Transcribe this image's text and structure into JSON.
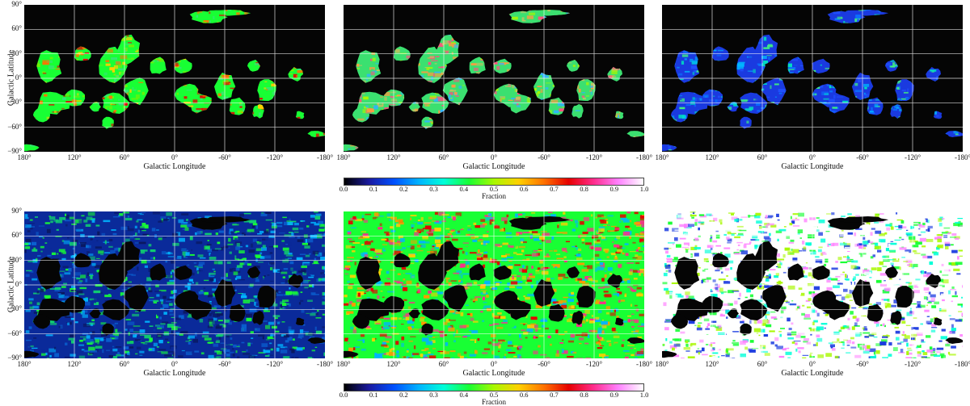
{
  "chart_data": {
    "type": "heatmap",
    "projection": "Cartesian all-sky maps, 3 columns x 2 rows",
    "x_axis": {
      "label": "Galactic Longitude",
      "range": [
        180,
        -180
      ],
      "ticks": [
        "180°",
        "120°",
        "60°",
        "0°",
        "-60°",
        "-120°",
        "-180°"
      ]
    },
    "y_axis": {
      "label": "Galactic Latitude",
      "range": [
        -90,
        90
      ],
      "ticks": [
        "90°",
        "60°",
        "30°",
        "0°",
        "−30°",
        "−60°",
        "−90°"
      ]
    },
    "grid": true,
    "colorbar": {
      "label": "Fraction",
      "range": [
        0,
        1
      ],
      "ticks": [
        "0.0",
        "0.1",
        "0.2",
        "0.3",
        "0.4",
        "0.5",
        "0.6",
        "0.7",
        "0.8",
        "0.9",
        "1.0"
      ],
      "colormap": [
        "#000000",
        "#1a1aa0",
        "#0050ff",
        "#00b4ff",
        "#00ffd8",
        "#18ff34",
        "#a8f800",
        "#ffd000",
        "#ff7200",
        "#e60000",
        "#ff2c8c",
        "#ff82ff",
        "#ffffff"
      ]
    },
    "panels": [
      {
        "row": 1,
        "column": 1,
        "dominant_fraction": 0.48,
        "masked_region": "outside",
        "palette": [
          "#18ff34",
          "#7cf000",
          "#3be080",
          "#ffd000",
          "#ff7200",
          "#e60000"
        ]
      },
      {
        "row": 1,
        "column": 2,
        "dominant_fraction": 0.52,
        "masked_region": "outside",
        "palette": [
          "#3be070",
          "#a8f800",
          "#ff9a40",
          "#ff5080",
          "#2fb4ff",
          "#c8c060"
        ]
      },
      {
        "row": 1,
        "column": 3,
        "dominant_fraction": 0.18,
        "masked_region": "outside",
        "palette": [
          "#1a3ae0",
          "#0a70ff",
          "#00b4ff",
          "#00e0c0",
          "#2050ff",
          "#40f080"
        ]
      },
      {
        "row": 2,
        "column": 1,
        "dominant_fraction": 0.2,
        "masked_region": "inside",
        "palette": [
          "#0a2a9a",
          "#0a60d0",
          "#00b4ff",
          "#10d070",
          "#18ff34",
          "#0a1860"
        ]
      },
      {
        "row": 2,
        "column": 2,
        "dominant_fraction": 0.58,
        "masked_region": "inside",
        "palette": [
          "#18ff34",
          "#00b4ff",
          "#ff2c8c",
          "#ff9a00",
          "#e60000",
          "#ffd000"
        ]
      },
      {
        "row": 2,
        "column": 3,
        "dominant_fraction": 0.45,
        "masked_region": "inside",
        "palette": [
          "#ffffff",
          "#1a3ae0",
          "#00ffd8",
          "#ff82ff",
          "#18ff34",
          "#a8f800"
        ]
      }
    ]
  }
}
